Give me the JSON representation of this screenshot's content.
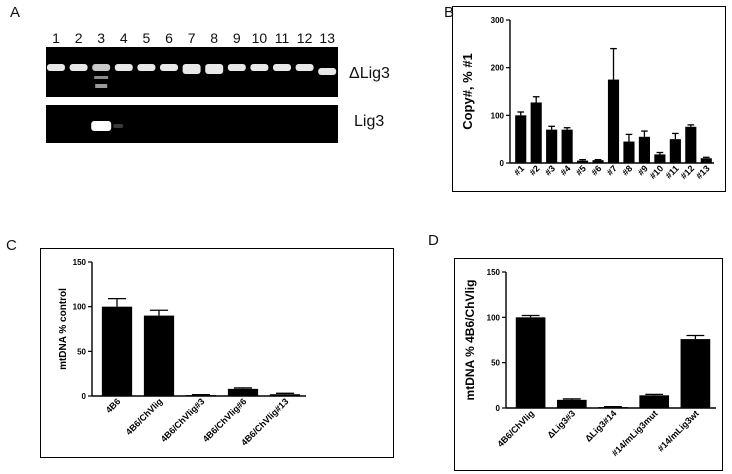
{
  "panels": {
    "A": "A",
    "B": "B",
    "C": "C",
    "D": "D"
  },
  "gel": {
    "lanes": [
      "1",
      "2",
      "3",
      "4",
      "5",
      "6",
      "7",
      "8",
      "9",
      "10",
      "11",
      "12",
      "13"
    ],
    "top_label": "ΔLig3",
    "bottom_label": "Lig3"
  },
  "chart_data": [
    {
      "panel": "B",
      "type": "bar",
      "title": "",
      "xlabel": "",
      "ylabel": "Copy#, % #1",
      "ylim": [
        0,
        300
      ],
      "yticks": [
        0,
        100,
        200,
        300
      ],
      "categories": [
        "#1",
        "#2",
        "#3",
        "#4",
        "#5",
        "#6",
        "#7",
        "#8",
        "#9",
        "#10",
        "#11",
        "#12",
        "#13"
      ],
      "values": [
        100,
        127,
        70,
        70,
        5,
        6,
        175,
        45,
        55,
        18,
        50,
        76,
        10
      ],
      "errors": [
        7,
        12,
        7,
        4,
        2,
        1,
        65,
        15,
        12,
        4,
        12,
        4,
        2
      ],
      "grid": false
    },
    {
      "panel": "C",
      "type": "bar",
      "title": "",
      "xlabel": "",
      "ylabel": "mtDNA % control",
      "ylim": [
        0,
        150
      ],
      "yticks": [
        0,
        50,
        100,
        150
      ],
      "categories": [
        "4B6",
        "4B6/ChVlig",
        "4B6/ChVlig#3",
        "4B6/ChVlig#6",
        "4B6/ChVlig#13"
      ],
      "values": [
        100,
        90,
        1,
        8,
        2
      ],
      "errors": [
        9,
        6,
        0.5,
        1,
        1
      ],
      "grid": false
    },
    {
      "panel": "D",
      "type": "bar",
      "title": "",
      "xlabel": "",
      "ylabel": "mtDNA % 4B6/ChVlig",
      "ylim": [
        0,
        150
      ],
      "yticks": [
        0,
        50,
        100,
        150
      ],
      "categories": [
        "4B6/ChVlig",
        "ΔLig3#3",
        "ΔLig3#14",
        "#14/mLig3mut",
        "#14/mLig3wt"
      ],
      "values": [
        100,
        9,
        1,
        14,
        76
      ],
      "errors": [
        2,
        1,
        0.5,
        1,
        4
      ],
      "grid": false
    }
  ]
}
